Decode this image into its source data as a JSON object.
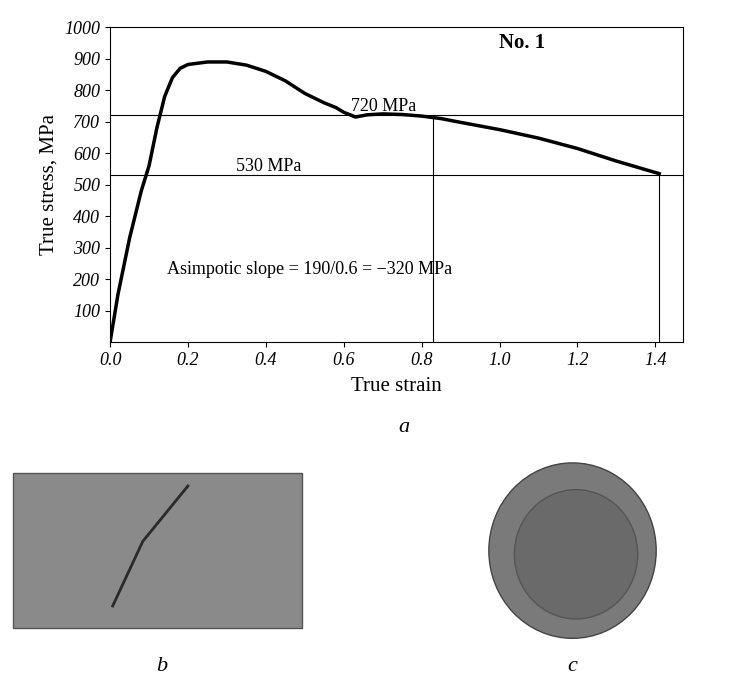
{
  "chart_data": {
    "type": "line",
    "title": "No. 1",
    "x_label": "True strain",
    "y_label": "True stress, MPa",
    "x": [
      0.0,
      0.02,
      0.05,
      0.08,
      0.1,
      0.12,
      0.14,
      0.16,
      0.18,
      0.2,
      0.25,
      0.3,
      0.35,
      0.4,
      0.45,
      0.5,
      0.55,
      0.58,
      0.6,
      0.63,
      0.66,
      0.7,
      0.75,
      0.8,
      0.85,
      0.9,
      1.0,
      1.1,
      1.2,
      1.3,
      1.41
    ],
    "series": [
      {
        "name": "No. 1",
        "color": "#000000",
        "values": [
          0,
          150,
          330,
          480,
          560,
          680,
          780,
          840,
          870,
          882,
          890,
          890,
          880,
          860,
          830,
          790,
          760,
          745,
          730,
          715,
          722,
          725,
          723,
          718,
          710,
          698,
          675,
          648,
          615,
          575,
          535
        ]
      }
    ],
    "xlim": [
      0.0,
      1.47
    ],
    "ylim": [
      0,
      1000
    ],
    "xticks": [
      {
        "value": 0.0,
        "label": "0.0"
      },
      {
        "value": 0.2,
        "label": "0.2"
      },
      {
        "value": 0.4,
        "label": "0.4"
      },
      {
        "value": 0.6,
        "label": "0.6"
      },
      {
        "value": 0.8,
        "label": "0.8"
      },
      {
        "value": 1.0,
        "label": "1.0"
      },
      {
        "value": 1.2,
        "label": "1.2"
      },
      {
        "value": 1.4,
        "label": "1.4"
      }
    ],
    "yticks": [
      100,
      200,
      300,
      400,
      500,
      600,
      700,
      800,
      900,
      1000
    ],
    "horizontal_lines": [
      {
        "y": 720,
        "label": "720 MPa"
      },
      {
        "y": 530,
        "label": "530 MPa"
      }
    ],
    "vertical_lines": [
      {
        "x": 0.83,
        "y_top": 720
      },
      {
        "x": 1.41,
        "y_top": 530
      }
    ],
    "annotation": "Asimpotic slope = 190/0.6 = −320 MPa",
    "grid": false
  },
  "panel_labels": {
    "chart": "a",
    "photos": [
      "b",
      "c"
    ]
  }
}
